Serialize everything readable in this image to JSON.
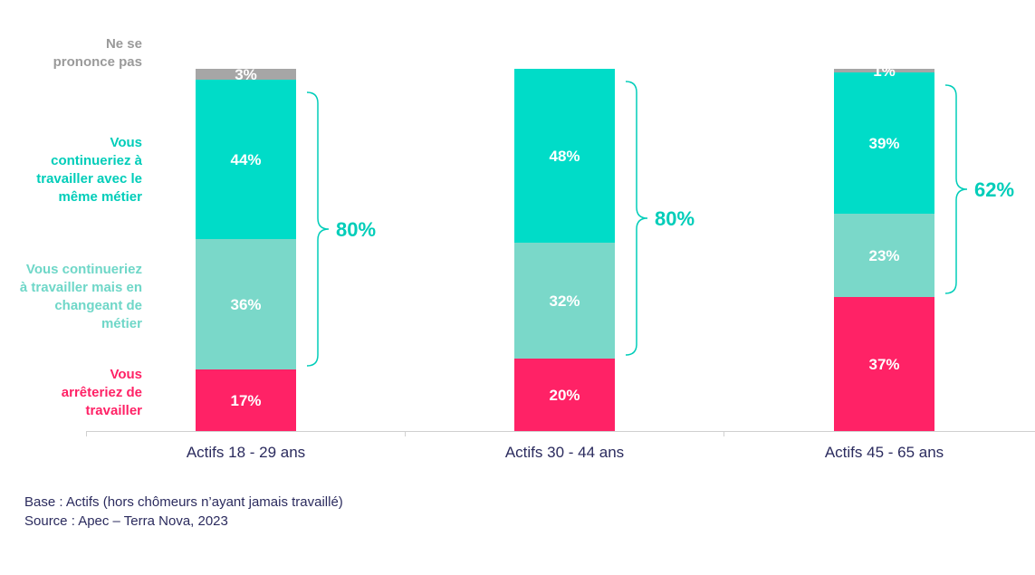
{
  "chart_data": {
    "type": "bar",
    "stacked": true,
    "categories": [
      "Actifs 18 - 29 ans",
      "Actifs 30 - 44 ans",
      "Actifs 45 - 65 ans"
    ],
    "series": [
      {
        "name": "Vous arrêteriez de travailler",
        "values": [
          17,
          20,
          37
        ],
        "color": "#ff2266",
        "label_color": "#ff2266"
      },
      {
        "name": "Vous continueriez à travailler mais en changeant de métier",
        "values": [
          36,
          32,
          23
        ],
        "color": "#7ad8c9",
        "label_color": "#6fd7c8"
      },
      {
        "name": "Vous continueriez à travailler avec le même métier",
        "values": [
          44,
          48,
          39
        ],
        "color": "#00dcc8",
        "label_color": "#00cdb9"
      },
      {
        "name": "Ne se prononce pas",
        "values": [
          3,
          0,
          1
        ],
        "color": "#a6a6a6",
        "label_color": "#9a9a9a"
      }
    ],
    "data_labels": [
      [
        "17%",
        "36%",
        "44%",
        "3%"
      ],
      [
        "20%",
        "32%",
        "48%",
        ""
      ],
      [
        "37%",
        "23%",
        "39%",
        "1%"
      ]
    ],
    "brace_totals": [
      "80%",
      "80%",
      "62%"
    ],
    "brace_color": "#00cdb9",
    "ylim": [
      0,
      100
    ],
    "grid": false,
    "legend_placement": "left"
  },
  "notes": {
    "base": "Base : Actifs (hors chômeurs n’ayant jamais travaillé)",
    "source": "Source : Apec – Terra Nova, 2023"
  }
}
